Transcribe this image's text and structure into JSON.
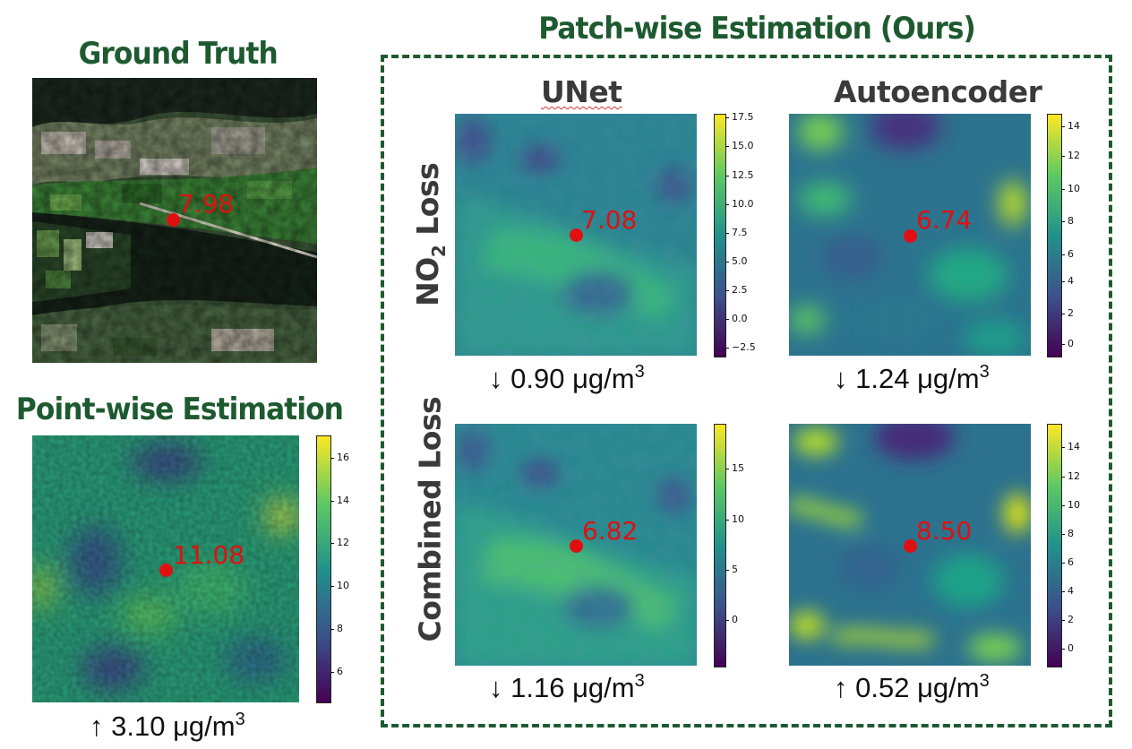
{
  "titles": {
    "ground_truth": "Ground Truth",
    "pointwise": "Point-wise Estimation",
    "patchwise": "Patch-wise Estimation (Ours)"
  },
  "columns": {
    "unet": "UNet",
    "autoencoder": "Autoencoder"
  },
  "rows": {
    "no2_loss_prefix": "NO",
    "no2_loss_sub": "2",
    "no2_loss_suffix": " Loss",
    "combined_loss": "Combined Loss"
  },
  "panels": {
    "ground_truth": {
      "value": "7.98"
    },
    "pointwise": {
      "value": "11.08",
      "metric_arrow": "↑",
      "metric_value": "3.10 μg/m",
      "metric_exp": "3",
      "colorbar_ticks": [
        "16",
        "14",
        "12",
        "10",
        "8",
        "6"
      ]
    },
    "unet_no2": {
      "value": "7.08",
      "metric_arrow": "↓",
      "metric_value": "0.90 μg/m",
      "metric_exp": "3",
      "colorbar_ticks": [
        "17.5",
        "15.0",
        "12.5",
        "10.0",
        "7.5",
        "5.0",
        "2.5",
        "0.0",
        "−2.5"
      ]
    },
    "ae_no2": {
      "value": "6.74",
      "metric_arrow": "↓",
      "metric_value": "1.24 μg/m",
      "metric_exp": "3",
      "colorbar_ticks": [
        "14",
        "12",
        "10",
        "8",
        "6",
        "4",
        "2",
        "0"
      ]
    },
    "unet_combined": {
      "value": "6.82",
      "metric_arrow": "↓",
      "metric_value": "1.16 μg/m",
      "metric_exp": "3",
      "colorbar_ticks": [
        "15",
        "10",
        "5",
        "0"
      ]
    },
    "ae_combined": {
      "value": "8.50",
      "metric_arrow": "↑",
      "metric_value": "0.52 μg/m",
      "metric_exp": "3",
      "colorbar_ticks": [
        "14",
        "12",
        "10",
        "8",
        "6",
        "4",
        "2",
        "0"
      ]
    }
  },
  "colors": {
    "title_green": "#1e5a30",
    "point_red": "#e01010",
    "header_gray": "#3a3a3a"
  }
}
